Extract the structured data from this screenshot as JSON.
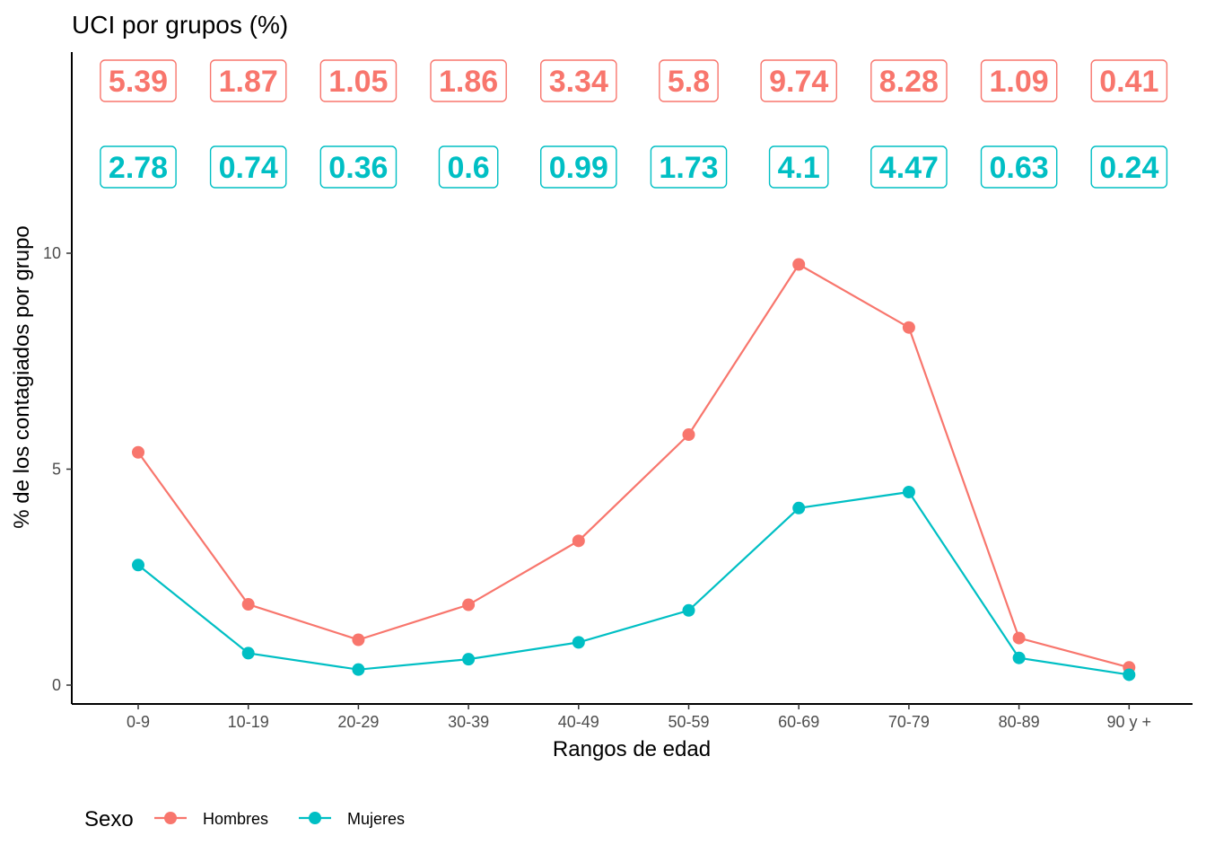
{
  "chart_data": {
    "type": "line",
    "title": "UCI por grupos (%)",
    "xlabel": "Rangos de edad",
    "ylabel": "% de los contagiados por grupo",
    "categories": [
      "0-9",
      "10-19",
      "20-29",
      "30-39",
      "40-49",
      "50-59",
      "60-69",
      "70-79",
      "80-89",
      "90 y +"
    ],
    "yticks": [
      0,
      5,
      10
    ],
    "series": [
      {
        "name": "Hombres",
        "color": "#F8766D",
        "values": [
          5.39,
          1.87,
          1.05,
          1.86,
          3.34,
          5.8,
          9.74,
          8.28,
          1.09,
          0.41
        ]
      },
      {
        "name": "Mujeres",
        "color": "#00BFC4",
        "values": [
          2.78,
          0.74,
          0.36,
          0.6,
          0.99,
          1.73,
          4.1,
          4.47,
          0.63,
          0.24
        ]
      }
    ],
    "legend": {
      "title": "Sexo",
      "position": "bottom-left"
    },
    "grid": false
  }
}
